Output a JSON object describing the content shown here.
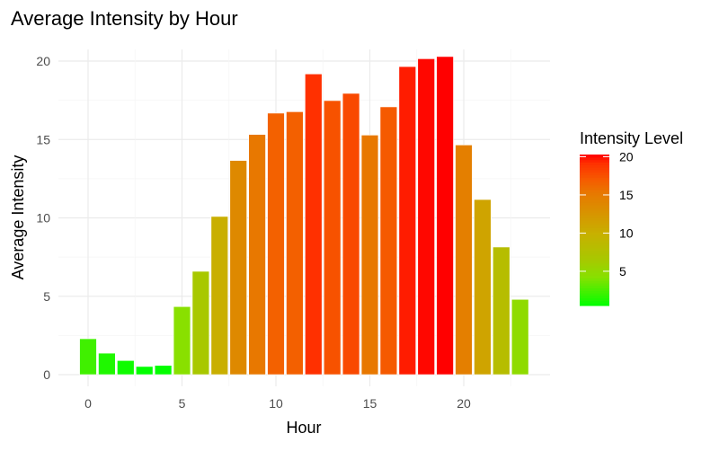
{
  "chart_data": {
    "type": "bar",
    "title": "Average Intensity by Hour",
    "xlabel": "Hour",
    "ylabel": "Average Intensity",
    "x": [
      0,
      1,
      2,
      3,
      4,
      5,
      6,
      7,
      8,
      9,
      10,
      11,
      12,
      13,
      14,
      15,
      16,
      17,
      18,
      19,
      20,
      21,
      22,
      23
    ],
    "values": [
      2.29,
      1.37,
      0.9,
      0.52,
      0.59,
      4.34,
      6.59,
      10.09,
      13.66,
      15.32,
      16.68,
      16.77,
      19.18,
      17.48,
      17.94,
      15.28,
      17.08,
      19.65,
      20.15,
      20.29,
      14.65,
      11.17,
      8.14,
      4.8
    ],
    "xticks": [
      0,
      5,
      10,
      15,
      20
    ],
    "yticks": [
      0,
      5,
      10,
      15,
      20
    ],
    "xlim": [
      -1.6,
      24.6
    ],
    "ylim": [
      0,
      21.3
    ],
    "grid": true,
    "legend": {
      "title": "Intensity Level",
      "placement": "right",
      "ticks": [
        5,
        10,
        15,
        20
      ],
      "range": [
        0.52,
        20.29
      ],
      "low_color": "#00FF00",
      "high_color": "#FF0000"
    }
  }
}
